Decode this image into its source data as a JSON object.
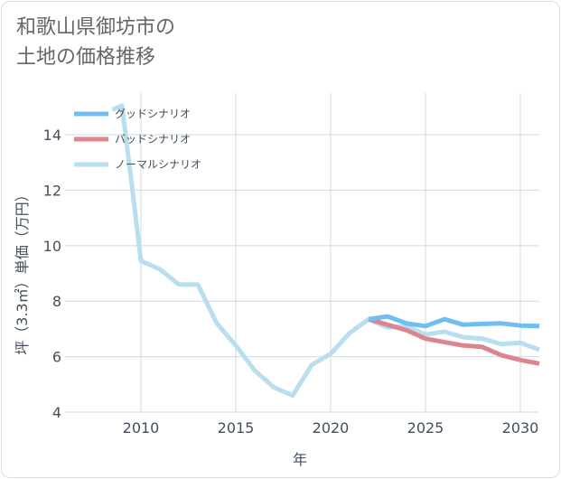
{
  "title": {
    "line1": "和歌山県御坊市の",
    "line2": "土地の価格推移"
  },
  "chart_data": {
    "type": "line",
    "xlabel": "年",
    "ylabel": "坪（3.3㎡）単価（万円）",
    "xlim": [
      2006,
      2031
    ],
    "ylim": [
      4,
      15.5
    ],
    "x_ticks": [
      2010,
      2015,
      2020,
      2025,
      2030
    ],
    "y_ticks": [
      4,
      6,
      8,
      10,
      12,
      14
    ],
    "grid": true,
    "legend_position": "top-left",
    "series": [
      {
        "name": "グッドシナリオ",
        "color": "#72bdf0",
        "points": [
          [
            2022,
            7.35
          ],
          [
            2023,
            7.45
          ],
          [
            2024,
            7.2
          ],
          [
            2025,
            7.1
          ],
          [
            2026,
            7.35
          ],
          [
            2027,
            7.15
          ],
          [
            2028,
            7.18
          ],
          [
            2029,
            7.2
          ],
          [
            2030,
            7.12
          ],
          [
            2031,
            7.1
          ]
        ]
      },
      {
        "name": "バッドシナリオ",
        "color": "#dd858f",
        "points": [
          [
            2022,
            7.35
          ],
          [
            2023,
            7.15
          ],
          [
            2024,
            6.95
          ],
          [
            2025,
            6.65
          ],
          [
            2026,
            6.52
          ],
          [
            2027,
            6.4
          ],
          [
            2028,
            6.35
          ],
          [
            2029,
            6.05
          ],
          [
            2030,
            5.88
          ],
          [
            2031,
            5.75
          ]
        ]
      },
      {
        "name": "ノーマルシナリオ",
        "color": "#b9dfee",
        "points": [
          [
            2008.5,
            14.9
          ],
          [
            2009,
            15.05
          ],
          [
            2009.5,
            12.3
          ],
          [
            2010,
            9.45
          ],
          [
            2011,
            9.15
          ],
          [
            2012,
            8.6
          ],
          [
            2013,
            8.6
          ],
          [
            2014,
            7.2
          ],
          [
            2015,
            6.4
          ],
          [
            2016,
            5.5
          ],
          [
            2017,
            4.9
          ],
          [
            2018,
            4.6
          ],
          [
            2019,
            5.7
          ],
          [
            2020,
            6.1
          ],
          [
            2021,
            6.85
          ],
          [
            2022,
            7.35
          ],
          [
            2023,
            7.05
          ],
          [
            2024,
            7.1
          ],
          [
            2025,
            6.8
          ],
          [
            2026,
            6.9
          ],
          [
            2027,
            6.7
          ],
          [
            2028,
            6.65
          ],
          [
            2029,
            6.45
          ],
          [
            2030,
            6.5
          ],
          [
            2031,
            6.25
          ]
        ]
      }
    ]
  }
}
